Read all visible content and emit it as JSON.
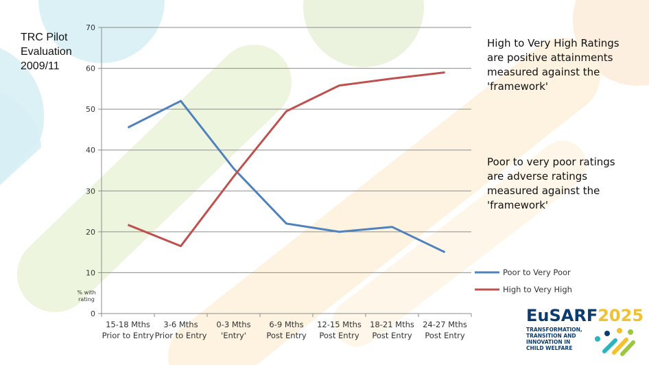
{
  "slide": {
    "title_lines": [
      "TRC Pilot",
      "Evaluation",
      "2009/11"
    ],
    "note_high": "High to Very High Ratings are positive attainments measured against the 'framework'",
    "note_poor": "Poor to very poor ratings are adverse ratings measured against the 'framework'"
  },
  "logo": {
    "name_main": "EuSARF",
    "name_year": "2025",
    "tagline": [
      "TRANSFORMATION,",
      "TRANSITION AND",
      "INNOVATION IN",
      "CHILD WELFARE"
    ],
    "icon": "eusarf-dots-logo-icon"
  },
  "chart_data": {
    "type": "line",
    "categories": [
      [
        "15-18 Mths",
        "Prior to Entry"
      ],
      [
        "3-6 Mths",
        "Prior to Entry"
      ],
      [
        "0-3 Mths",
        "'Entry'"
      ],
      [
        "6-9 Mths",
        "Post Entry"
      ],
      [
        "12-15 Mths",
        "Post Entry"
      ],
      [
        "18-21 Mths",
        "Post Entry"
      ],
      [
        "24-27 Mths",
        "Post Entry"
      ]
    ],
    "series": [
      {
        "name": "Poor to Very Poor",
        "color": "#4f81bd",
        "values": [
          45.5,
          52,
          35.5,
          22,
          20,
          21.2,
          15
        ]
      },
      {
        "name": "High to Very High",
        "color": "#c0504d",
        "values": [
          21.7,
          16.5,
          33.5,
          49.5,
          55.8,
          57.5,
          59
        ]
      }
    ],
    "ylim": [
      0,
      70
    ],
    "yticks": [
      0,
      10,
      20,
      30,
      40,
      50,
      60,
      70
    ],
    "ylabel_lines": [
      "% with",
      "rating"
    ],
    "grid": true,
    "legend_position": "right"
  }
}
